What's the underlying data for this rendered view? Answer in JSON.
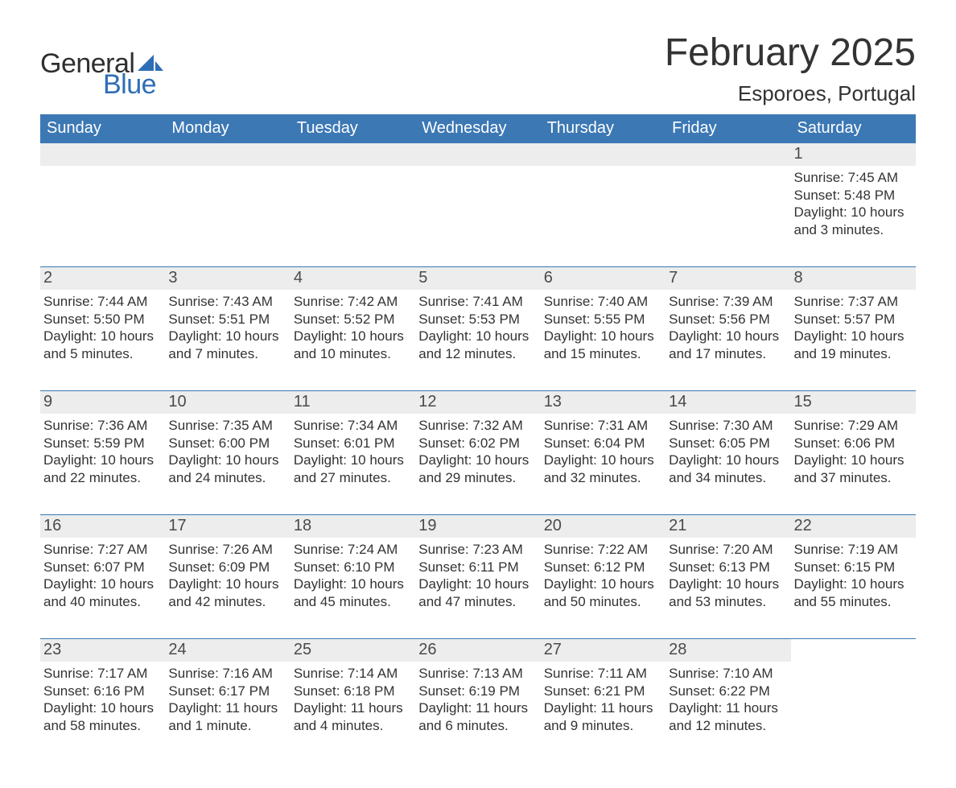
{
  "brand": {
    "word1": "General",
    "word2": "Blue",
    "sail_color": "#2f6eb5",
    "text_dark": "#2f2f2f"
  },
  "title": "February 2025",
  "location": "Esporoes, Portugal",
  "colors": {
    "header_bg": "#3c78b4",
    "header_text": "#ffffff",
    "daybar_bg": "#ededed",
    "daynum_text": "#4a4a4a",
    "body_text": "#333333",
    "rule": "#3c78b4",
    "page_bg": "#ffffff"
  },
  "weekdays": [
    "Sunday",
    "Monday",
    "Tuesday",
    "Wednesday",
    "Thursday",
    "Friday",
    "Saturday"
  ],
  "weeks": [
    [
      null,
      null,
      null,
      null,
      null,
      null,
      {
        "n": "1",
        "sr": "7:45 AM",
        "ss": "5:48 PM",
        "dl": "10 hours and 3 minutes."
      }
    ],
    [
      {
        "n": "2",
        "sr": "7:44 AM",
        "ss": "5:50 PM",
        "dl": "10 hours and 5 minutes."
      },
      {
        "n": "3",
        "sr": "7:43 AM",
        "ss": "5:51 PM",
        "dl": "10 hours and 7 minutes."
      },
      {
        "n": "4",
        "sr": "7:42 AM",
        "ss": "5:52 PM",
        "dl": "10 hours and 10 minutes."
      },
      {
        "n": "5",
        "sr": "7:41 AM",
        "ss": "5:53 PM",
        "dl": "10 hours and 12 minutes."
      },
      {
        "n": "6",
        "sr": "7:40 AM",
        "ss": "5:55 PM",
        "dl": "10 hours and 15 minutes."
      },
      {
        "n": "7",
        "sr": "7:39 AM",
        "ss": "5:56 PM",
        "dl": "10 hours and 17 minutes."
      },
      {
        "n": "8",
        "sr": "7:37 AM",
        "ss": "5:57 PM",
        "dl": "10 hours and 19 minutes."
      }
    ],
    [
      {
        "n": "9",
        "sr": "7:36 AM",
        "ss": "5:59 PM",
        "dl": "10 hours and 22 minutes."
      },
      {
        "n": "10",
        "sr": "7:35 AM",
        "ss": "6:00 PM",
        "dl": "10 hours and 24 minutes."
      },
      {
        "n": "11",
        "sr": "7:34 AM",
        "ss": "6:01 PM",
        "dl": "10 hours and 27 minutes."
      },
      {
        "n": "12",
        "sr": "7:32 AM",
        "ss": "6:02 PM",
        "dl": "10 hours and 29 minutes."
      },
      {
        "n": "13",
        "sr": "7:31 AM",
        "ss": "6:04 PM",
        "dl": "10 hours and 32 minutes."
      },
      {
        "n": "14",
        "sr": "7:30 AM",
        "ss": "6:05 PM",
        "dl": "10 hours and 34 minutes."
      },
      {
        "n": "15",
        "sr": "7:29 AM",
        "ss": "6:06 PM",
        "dl": "10 hours and 37 minutes."
      }
    ],
    [
      {
        "n": "16",
        "sr": "7:27 AM",
        "ss": "6:07 PM",
        "dl": "10 hours and 40 minutes."
      },
      {
        "n": "17",
        "sr": "7:26 AM",
        "ss": "6:09 PM",
        "dl": "10 hours and 42 minutes."
      },
      {
        "n": "18",
        "sr": "7:24 AM",
        "ss": "6:10 PM",
        "dl": "10 hours and 45 minutes."
      },
      {
        "n": "19",
        "sr": "7:23 AM",
        "ss": "6:11 PM",
        "dl": "10 hours and 47 minutes."
      },
      {
        "n": "20",
        "sr": "7:22 AM",
        "ss": "6:12 PM",
        "dl": "10 hours and 50 minutes."
      },
      {
        "n": "21",
        "sr": "7:20 AM",
        "ss": "6:13 PM",
        "dl": "10 hours and 53 minutes."
      },
      {
        "n": "22",
        "sr": "7:19 AM",
        "ss": "6:15 PM",
        "dl": "10 hours and 55 minutes."
      }
    ],
    [
      {
        "n": "23",
        "sr": "7:17 AM",
        "ss": "6:16 PM",
        "dl": "10 hours and 58 minutes."
      },
      {
        "n": "24",
        "sr": "7:16 AM",
        "ss": "6:17 PM",
        "dl": "11 hours and 1 minute."
      },
      {
        "n": "25",
        "sr": "7:14 AM",
        "ss": "6:18 PM",
        "dl": "11 hours and 4 minutes."
      },
      {
        "n": "26",
        "sr": "7:13 AM",
        "ss": "6:19 PM",
        "dl": "11 hours and 6 minutes."
      },
      {
        "n": "27",
        "sr": "7:11 AM",
        "ss": "6:21 PM",
        "dl": "11 hours and 9 minutes."
      },
      {
        "n": "28",
        "sr": "7:10 AM",
        "ss": "6:22 PM",
        "dl": "11 hours and 12 minutes."
      },
      null
    ]
  ],
  "labels": {
    "sunrise": "Sunrise: ",
    "sunset": "Sunset: ",
    "daylight": "Daylight: "
  }
}
